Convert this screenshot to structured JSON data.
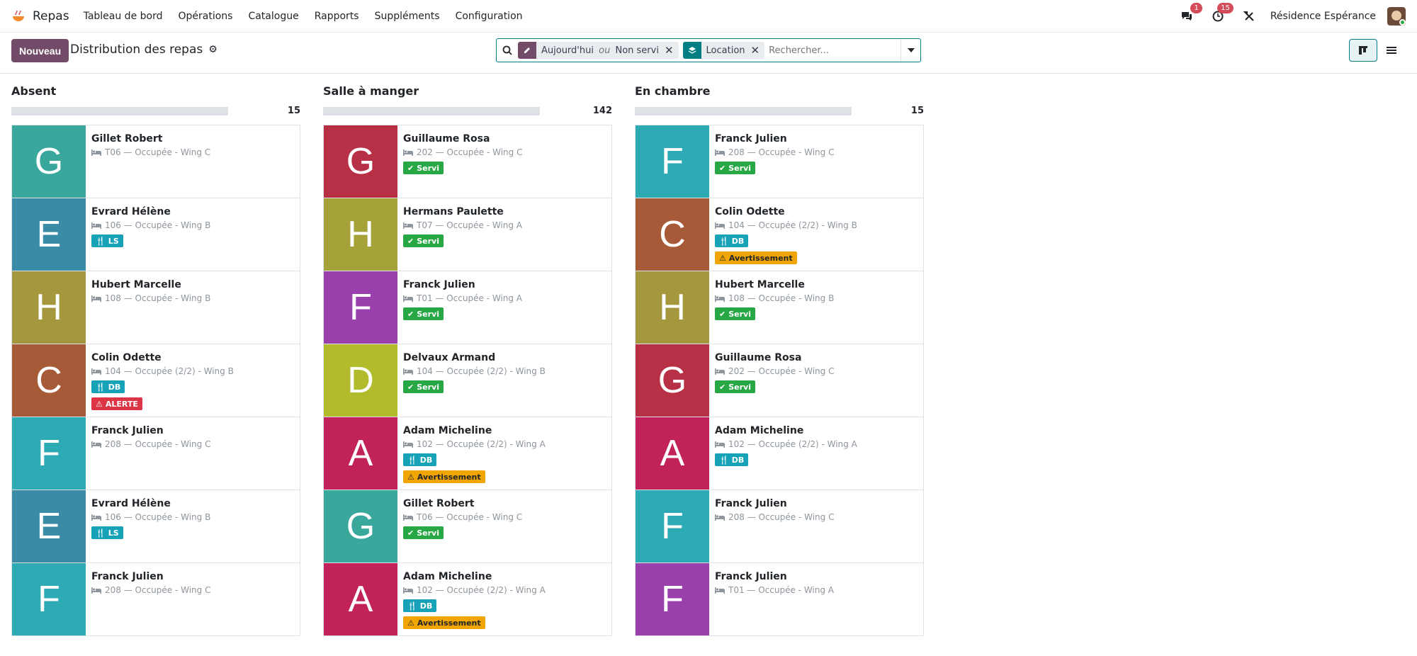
{
  "navbar": {
    "app_name": "Repas",
    "menu": [
      "Tableau de bord",
      "Opérations",
      "Catalogue",
      "Rapports",
      "Suppléments",
      "Configuration"
    ],
    "messages_count": "1",
    "activities_count": "15",
    "company": "Résidence Espérance"
  },
  "control": {
    "new_button": "Nouveau",
    "title": "Distribution des repas",
    "filter_facet": {
      "part1": "Aujourd'hui",
      "sep": "ou",
      "part2": "Non servi"
    },
    "group_facet": "Location",
    "search_placeholder": "Rechercher..."
  },
  "columns": [
    {
      "title": "Absent",
      "count": "15",
      "cards": [
        {
          "initial": "G",
          "color": "#3aa79d",
          "name": "Gillet Robert",
          "room": "T06 — Occupée - Wing C",
          "tags": []
        },
        {
          "initial": "E",
          "color": "#3a8ba5",
          "name": "Evrard Hélène",
          "room": "106 — Occupée - Wing B",
          "tags": [
            {
              "kind": "diet",
              "label": "LS"
            }
          ]
        },
        {
          "initial": "H",
          "color": "#a5973d",
          "name": "Hubert Marcelle",
          "room": "108 — Occupée - Wing B",
          "tags": []
        },
        {
          "initial": "C",
          "color": "#a65a38",
          "name": "Colin Odette",
          "room": "104 — Occupée (2/2) - Wing B",
          "tags": [
            {
              "kind": "diet",
              "label": "DB"
            },
            {
              "kind": "alert",
              "label": "ALERTE"
            }
          ]
        },
        {
          "initial": "F",
          "color": "#2eaab5",
          "name": "Franck Julien",
          "room": "208 — Occupée - Wing C",
          "tags": []
        },
        {
          "initial": "E",
          "color": "#3a8ba5",
          "name": "Evrard Hélène",
          "room": "106 — Occupée - Wing B",
          "tags": [
            {
              "kind": "diet",
              "label": "LS"
            }
          ]
        },
        {
          "initial": "F",
          "color": "#2eaab5",
          "name": "Franck Julien",
          "room": "208 — Occupée - Wing C",
          "tags": []
        }
      ]
    },
    {
      "title": "Salle à manger",
      "count": "142",
      "cards": [
        {
          "initial": "G",
          "color": "#b83046",
          "name": "Guillaume Rosa",
          "room": "202 — Occupée - Wing C",
          "tags": [
            {
              "kind": "servi",
              "label": "Servi"
            }
          ]
        },
        {
          "initial": "H",
          "color": "#a5a23a",
          "name": "Hermans Paulette",
          "room": "T07 — Occupée - Wing A",
          "tags": [
            {
              "kind": "servi",
              "label": "Servi"
            }
          ]
        },
        {
          "initial": "F",
          "color": "#9a40ad",
          "name": "Franck Julien",
          "room": "T01 — Occupée - Wing A",
          "tags": [
            {
              "kind": "servi",
              "label": "Servi"
            }
          ]
        },
        {
          "initial": "D",
          "color": "#b1bb2c",
          "name": "Delvaux Armand",
          "room": "104 — Occupée (2/2) - Wing B",
          "tags": [
            {
              "kind": "servi",
              "label": "Servi"
            }
          ]
        },
        {
          "initial": "A",
          "color": "#c2225a",
          "name": "Adam Micheline",
          "room": "102 — Occupée (2/2) - Wing A",
          "tags": [
            {
              "kind": "diet",
              "label": "DB"
            },
            {
              "kind": "warn",
              "label": "Avertissement"
            }
          ]
        },
        {
          "initial": "G",
          "color": "#3aa79d",
          "name": "Gillet Robert",
          "room": "T06 — Occupée - Wing C",
          "tags": [
            {
              "kind": "servi",
              "label": "Servi"
            }
          ]
        },
        {
          "initial": "A",
          "color": "#c2225a",
          "name": "Adam Micheline",
          "room": "102 — Occupée (2/2) - Wing A",
          "tags": [
            {
              "kind": "diet",
              "label": "DB"
            },
            {
              "kind": "warn",
              "label": "Avertissement"
            }
          ]
        }
      ]
    },
    {
      "title": "En chambre",
      "count": "15",
      "cards": [
        {
          "initial": "F",
          "color": "#2eaab5",
          "name": "Franck Julien",
          "room": "208 — Occupée - Wing C",
          "tags": [
            {
              "kind": "servi",
              "label": "Servi"
            }
          ]
        },
        {
          "initial": "C",
          "color": "#a65a38",
          "name": "Colin Odette",
          "room": "104 — Occupée (2/2) - Wing B",
          "tags": [
            {
              "kind": "diet",
              "label": "DB"
            },
            {
              "kind": "warn",
              "label": "Avertissement"
            }
          ]
        },
        {
          "initial": "H",
          "color": "#a5973d",
          "name": "Hubert Marcelle",
          "room": "108 — Occupée - Wing B",
          "tags": [
            {
              "kind": "servi",
              "label": "Servi"
            }
          ]
        },
        {
          "initial": "G",
          "color": "#b83046",
          "name": "Guillaume Rosa",
          "room": "202 — Occupée - Wing C",
          "tags": [
            {
              "kind": "servi",
              "label": "Servi"
            }
          ]
        },
        {
          "initial": "A",
          "color": "#c2225a",
          "name": "Adam Micheline",
          "room": "102 — Occupée (2/2) - Wing A",
          "tags": [
            {
              "kind": "diet",
              "label": "DB"
            }
          ]
        },
        {
          "initial": "F",
          "color": "#2eaab5",
          "name": "Franck Julien",
          "room": "208 — Occupée - Wing C",
          "tags": []
        },
        {
          "initial": "F",
          "color": "#9a40ad",
          "name": "Franck Julien",
          "room": "T01 — Occupée - Wing A",
          "tags": []
        }
      ]
    }
  ]
}
